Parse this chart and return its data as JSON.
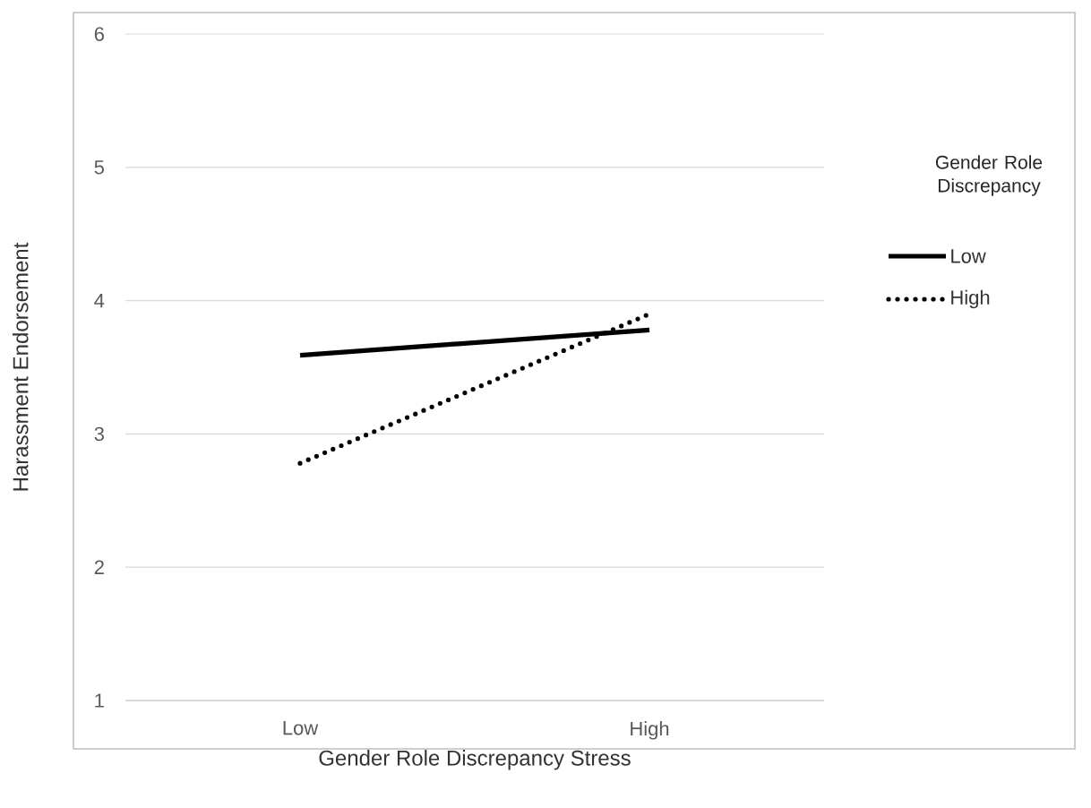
{
  "chart_data": {
    "type": "line",
    "xlabel": "Gender Role Discrepancy Stress",
    "ylabel": "Harassment Endorsement",
    "legend_title": "Gender Role Discrepancy",
    "categories": [
      "Low",
      "High"
    ],
    "series": [
      {
        "name": "Low",
        "color": "#000000",
        "line_style": "solid",
        "values": [
          3.59,
          3.78
        ]
      },
      {
        "name": "High",
        "color": "#000000",
        "line_style": "dotted",
        "values": [
          2.78,
          3.9
        ]
      }
    ],
    "ylim": [
      1,
      6
    ],
    "yticks": [
      1,
      2,
      3,
      4,
      5,
      6
    ],
    "grid": "y",
    "legend": "right"
  }
}
